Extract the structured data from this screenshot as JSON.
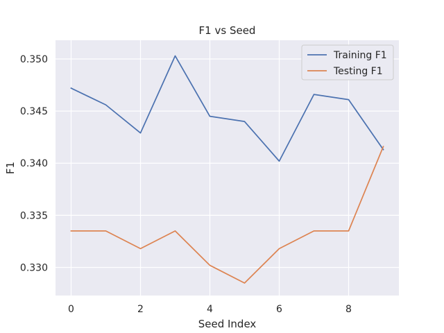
{
  "chart_data": {
    "type": "line",
    "title": "F1 vs Seed",
    "xlabel": "Seed Index",
    "ylabel": "F1",
    "x": [
      0,
      1,
      2,
      3,
      4,
      5,
      6,
      7,
      8,
      9
    ],
    "xlim": [
      -0.45,
      9.45
    ],
    "ylim": [
      0.3273,
      0.3518
    ],
    "xticks": [
      0,
      2,
      4,
      6,
      8
    ],
    "yticks": [
      0.33,
      0.335,
      0.34,
      0.345,
      0.35
    ],
    "xtick_labels": [
      "0",
      "2",
      "4",
      "6",
      "8"
    ],
    "ytick_labels": [
      "0.330",
      "0.335",
      "0.340",
      "0.345",
      "0.350"
    ],
    "grid": true,
    "legend_position": "top-right",
    "series": [
      {
        "name": "Training F1",
        "color": "#4c72b0",
        "values": [
          0.3472,
          0.3456,
          0.3429,
          0.3503,
          0.3445,
          0.344,
          0.3402,
          0.3466,
          0.3461,
          0.3413
        ]
      },
      {
        "name": "Testing F1",
        "color": "#dd8452",
        "values": [
          0.3335,
          0.3335,
          0.3318,
          0.3335,
          0.3302,
          0.3285,
          0.3318,
          0.3335,
          0.3335,
          0.3416
        ]
      }
    ],
    "background": "#eaeaf2",
    "grid_color": "#ffffff"
  }
}
